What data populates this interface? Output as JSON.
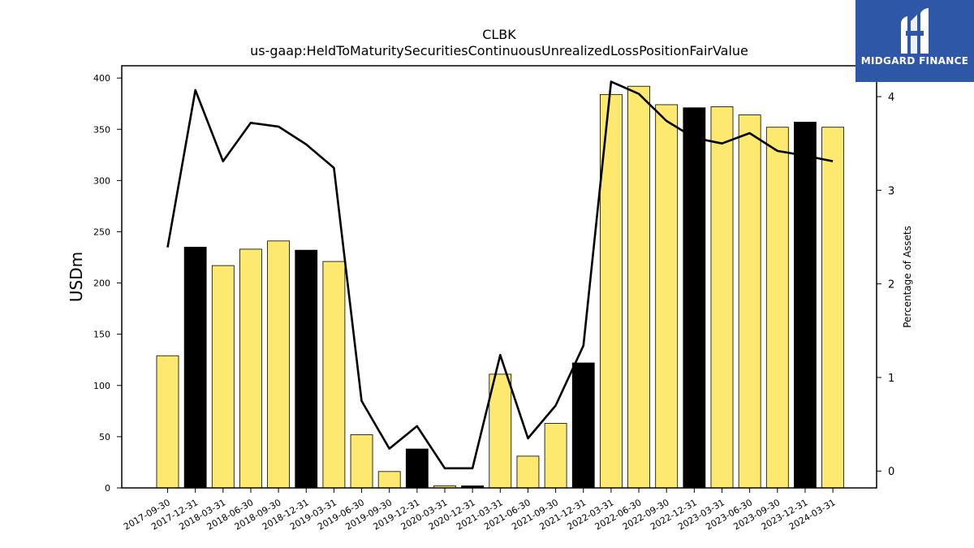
{
  "chart_data": {
    "type": "bar",
    "title": "CLBK",
    "subtitle": "us-gaap:HeldToMaturitySecuritiesContinuousUnrealizedLossPositionFairValue",
    "ylabel": "USDm",
    "y2label": "Percentage of Assets",
    "ylim": [
      0,
      412
    ],
    "y2lim": [
      -0.18,
      4.33
    ],
    "y_ticks": [
      0,
      50,
      100,
      150,
      200,
      250,
      300,
      350,
      400
    ],
    "y2_ticks": [
      0,
      1,
      2,
      3,
      4
    ],
    "categories": [
      "2017-09-30",
      "2017-12-31",
      "2018-03-31",
      "2018-06-30",
      "2018-09-30",
      "2018-12-31",
      "2019-03-31",
      "2019-06-30",
      "2019-09-30",
      "2019-12-31",
      "2020-03-31",
      "2020-12-31",
      "2021-03-31",
      "2021-06-30",
      "2021-09-30",
      "2021-12-31",
      "2022-03-31",
      "2022-06-30",
      "2022-09-30",
      "2022-12-31",
      "2023-03-31",
      "2023-06-30",
      "2023-09-30",
      "2023-12-31",
      "2024-03-31"
    ],
    "series": [
      {
        "kind": "bar",
        "values": [
          129,
          235,
          217,
          233,
          241,
          232,
          221,
          52,
          16,
          38,
          2,
          2,
          111,
          31,
          63,
          122,
          384,
          392,
          374,
          371,
          372,
          364,
          352,
          357,
          352
        ],
        "colors": [
          "#fde870",
          "#000000",
          "#fde870",
          "#fde870",
          "#fde870",
          "#000000",
          "#fde870",
          "#fde870",
          "#fde870",
          "#000000",
          "#fde870",
          "#000000",
          "#fde870",
          "#fde870",
          "#fde870",
          "#000000",
          "#fde870",
          "#fde870",
          "#fde870",
          "#000000",
          "#fde870",
          "#fde870",
          "#fde870",
          "#000000",
          "#fde870"
        ]
      },
      {
        "kind": "line",
        "axis": "right",
        "values": [
          2.39,
          4.07,
          3.31,
          3.72,
          3.68,
          3.49,
          3.24,
          0.75,
          0.24,
          0.48,
          0.03,
          0.03,
          1.24,
          0.35,
          0.7,
          1.34,
          4.16,
          4.03,
          3.74,
          3.56,
          3.5,
          3.61,
          3.42,
          3.37,
          3.31
        ],
        "color": "#000000"
      }
    ],
    "grid": false,
    "legend": "none"
  },
  "logo": {
    "text": "MIDGARD FINANCE",
    "bg_color": "#2f57a8"
  }
}
